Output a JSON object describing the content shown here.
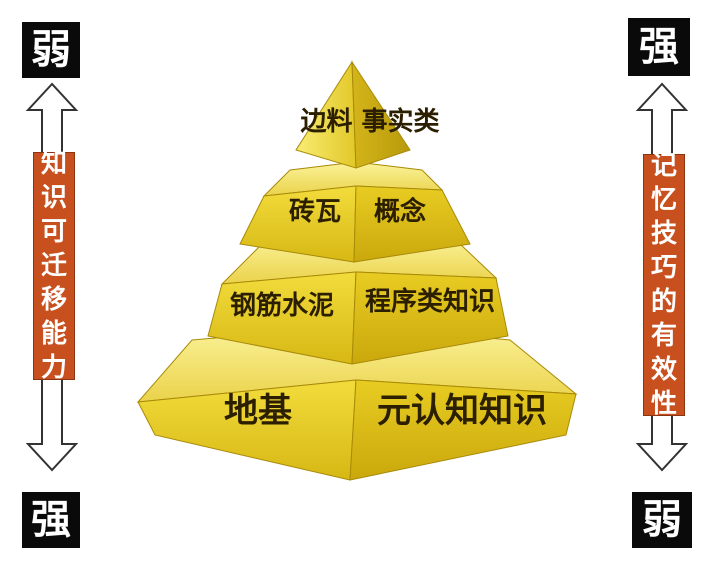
{
  "left_axis": {
    "top_label": "弱",
    "bottom_label": "强",
    "caption_chars": [
      "知",
      "识",
      "可",
      "迁",
      "移",
      "能",
      "力"
    ]
  },
  "right_axis": {
    "top_label": "强",
    "bottom_label": "弱",
    "caption_chars": [
      "记",
      "忆",
      "技",
      "巧",
      "的",
      "有",
      "效",
      "性"
    ]
  },
  "pyramid": {
    "tier1": "边料 事实类",
    "tier2_left": "砖瓦",
    "tier2_right": "概念",
    "tier3_left": "钢筋水泥",
    "tier3_right": "程序类知识",
    "tier4_left": "地基",
    "tier4_right": "元认知知识"
  },
  "colors": {
    "gold_light": "#f4e35a",
    "gold_mid": "#e0c21e",
    "gold_dark": "#a88a08",
    "label_bg": "#c8501e",
    "box_bg": "#0a0a0a"
  }
}
